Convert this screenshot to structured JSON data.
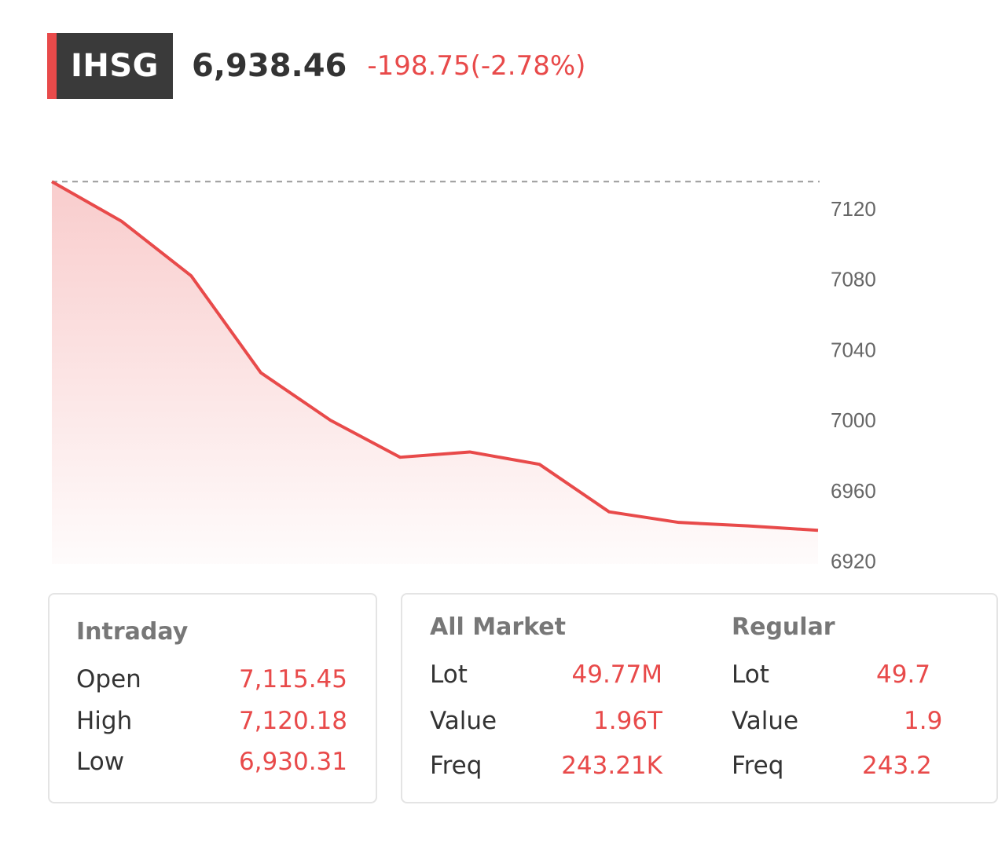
{
  "header": {
    "ticker": "IHSG",
    "price": "6,938.46",
    "change": "-198.75(-2.78%)"
  },
  "colors": {
    "accent": "#e84a4a",
    "badge_bg": "#3a3a3a",
    "text": "#333333",
    "muted": "#777777"
  },
  "chart_data": {
    "type": "area",
    "x": [
      1,
      2,
      3,
      4,
      5,
      6,
      7,
      8,
      9,
      10,
      11,
      12
    ],
    "values": [
      7135.5,
      7113,
      7082,
      7027,
      7000,
      6979,
      6982,
      6975,
      6948,
      6942,
      6940,
      6937.5
    ],
    "reference_line": 7135.5,
    "ylim": [
      6917,
      7140
    ],
    "yticks": [
      "7120",
      "7080",
      "7040",
      "7000",
      "6960",
      "6920"
    ],
    "grid": false,
    "legend": "none"
  },
  "intraday": {
    "title": "Intraday",
    "rows": [
      {
        "label": "Open",
        "value": "7,115.45"
      },
      {
        "label": "High",
        "value": "7,120.18"
      },
      {
        "label": "Low",
        "value": "6,930.31"
      }
    ]
  },
  "all_market": {
    "title": "All Market",
    "rows": [
      {
        "label": "Lot",
        "value": "49.77M"
      },
      {
        "label": "Value",
        "value": "1.96T"
      },
      {
        "label": "Freq",
        "value": "243.21K"
      }
    ]
  },
  "regular": {
    "title": "Regular",
    "rows": [
      {
        "label": "Lot",
        "value": "49.7"
      },
      {
        "label": "Value",
        "value": "1.9"
      },
      {
        "label": "Freq",
        "value": "243.2"
      }
    ]
  }
}
